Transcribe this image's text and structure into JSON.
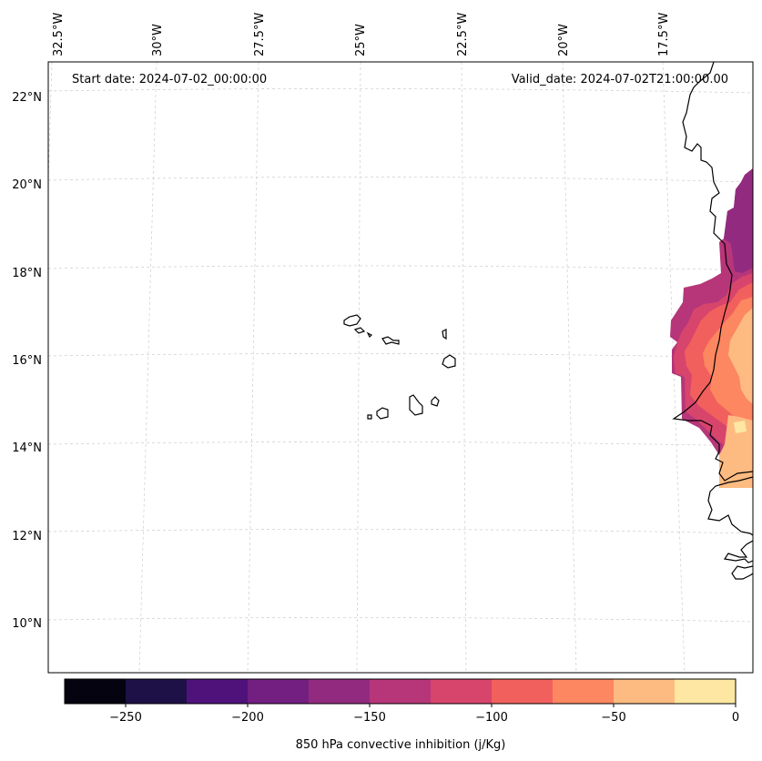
{
  "header": {
    "start_date": "Start date: 2024-07-02_00:00:00",
    "valid_date": "Valid_date: 2024-07-02T21:00:00.00"
  },
  "axes": {
    "longitude_labels": [
      "32.5°W",
      "30°W",
      "27.5°W",
      "25°W",
      "22.5°W",
      "20°W",
      "17.5°W"
    ],
    "latitude_labels": [
      "22°N",
      "20°N",
      "18°N",
      "16°N",
      "14°N",
      "12°N",
      "10°N"
    ]
  },
  "colorbar": {
    "label": "850 hPa convective inhibition (j/Kg)",
    "tick_labels": [
      "−250",
      "−200",
      "−150",
      "−100",
      "−50",
      "0"
    ],
    "levels": [
      -275,
      -250,
      -225,
      -200,
      -175,
      -150,
      -125,
      -100,
      -75,
      -50,
      -25,
      0
    ],
    "colors": [
      "#04030f",
      "#1d1147",
      "#4f127b",
      "#731e81",
      "#922b80",
      "#b63679",
      "#d8456c",
      "#f1605d",
      "#fc8761",
      "#febb81",
      "#fde7a3"
    ]
  },
  "map": {
    "variable": "850 hPa convective inhibition",
    "units": "j/Kg",
    "region": "Cape Verde Islands and West African coast"
  }
}
